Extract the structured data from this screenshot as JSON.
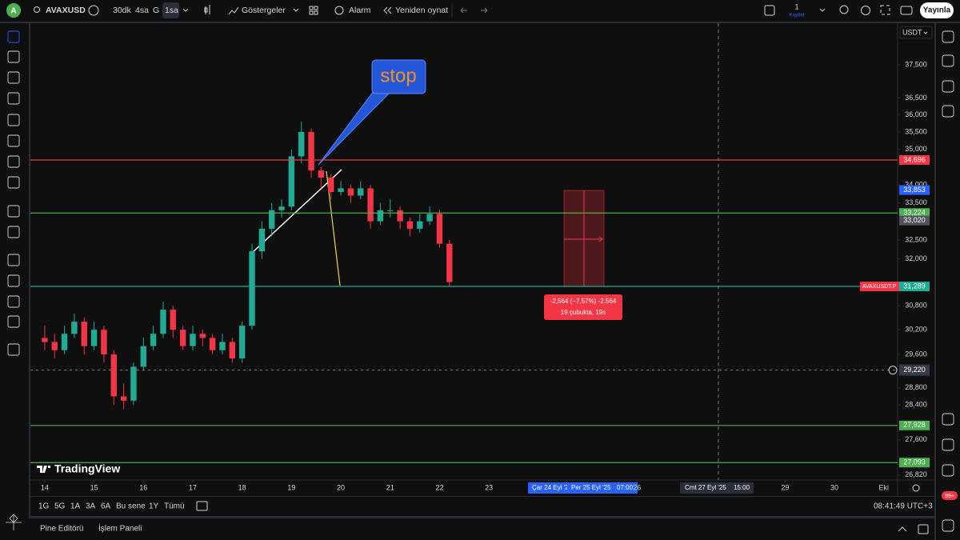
{
  "top_bar": {
    "avatar": "A",
    "symbol": "AVAXUSD",
    "intervals": [
      "30dk",
      "4sa",
      "G",
      "1sa"
    ],
    "indicators": "Göstergeler",
    "alarm": "Alarm",
    "replay": "Yeniden oynat",
    "save_count": "1",
    "save": "Kaydet",
    "publish": "Yayınla"
  },
  "chart_data": {
    "type": "candlestick",
    "currency": "USDT",
    "log_scale": true,
    "grid": false,
    "up_color": "#22ab94",
    "down_color": "#f23645",
    "x": [
      14.0,
      14.2,
      14.4,
      14.6,
      14.8,
      15.0,
      15.2,
      15.4,
      15.6,
      15.8,
      16.0,
      16.2,
      16.4,
      16.6,
      16.8,
      17.0,
      17.2,
      17.4,
      17.6,
      17.8,
      18.0,
      18.2,
      18.4,
      18.6,
      18.8,
      19.0,
      19.2,
      19.4,
      19.6,
      19.8,
      20.0,
      20.2,
      20.4,
      20.6,
      20.8,
      21.0,
      21.2,
      21.4,
      21.6,
      21.8,
      22.0,
      22.2
    ],
    "open": [
      30000,
      29900,
      29700,
      30100,
      30400,
      29800,
      30200,
      29600,
      28600,
      28500,
      29300,
      29800,
      30100,
      30700,
      30200,
      29800,
      30100,
      30000,
      29700,
      29900,
      29500,
      30300,
      32200,
      32800,
      33300,
      33400,
      34800,
      35500,
      34400,
      34200,
      33800,
      33900,
      33700,
      33900,
      33000,
      33300,
      33300,
      33000,
      32800,
      33000,
      33200,
      32400
    ],
    "high": [
      30300,
      30100,
      30300,
      30600,
      30500,
      30400,
      30300,
      29700,
      28900,
      29400,
      30000,
      30300,
      30900,
      30800,
      30300,
      30300,
      30200,
      30100,
      30100,
      30000,
      30400,
      32400,
      33000,
      33500,
      33600,
      35000,
      35800,
      35600,
      34500,
      34300,
      34100,
      34000,
      34100,
      34000,
      33500,
      33600,
      33400,
      33100,
      33200,
      33400,
      33300,
      32500
    ],
    "low": [
      29700,
      29500,
      29600,
      30000,
      29600,
      29700,
      29400,
      28400,
      28300,
      28400,
      29200,
      29700,
      30000,
      30000,
      29700,
      29700,
      29800,
      29600,
      29600,
      29400,
      29400,
      30200,
      32000,
      32600,
      33100,
      33300,
      34600,
      34200,
      33900,
      33600,
      33700,
      33500,
      33600,
      32800,
      32900,
      33100,
      32800,
      32600,
      32700,
      32900,
      32300,
      31300
    ],
    "close": [
      29900,
      29700,
      30100,
      30400,
      29800,
      30200,
      29600,
      28600,
      28500,
      29300,
      29800,
      30100,
      30700,
      30200,
      29800,
      30100,
      30000,
      29700,
      29900,
      29500,
      30300,
      32200,
      32800,
      33300,
      33400,
      34800,
      35500,
      34400,
      34200,
      33800,
      33900,
      33700,
      33900,
      33000,
      33300,
      33300,
      33000,
      32800,
      33000,
      33200,
      32400,
      31400
    ],
    "xlim": [
      13.71,
      31.28
    ],
    "xticks": [
      14,
      15,
      16,
      17,
      18,
      19,
      20,
      21,
      22,
      23,
      26,
      29,
      30,
      {
        "value": 31,
        "label": "Eki"
      }
    ],
    "ylim": [
      26710,
      38800
    ],
    "yticks": [
      {
        "value": 37500,
        "label": "37,500"
      },
      {
        "value": 36500,
        "label": "36,500"
      },
      {
        "value": 36000,
        "label": "36,000"
      },
      {
        "value": 35500,
        "label": "35,500"
      },
      {
        "value": 35000,
        "label": "35,000"
      },
      {
        "value": 34000,
        "label": "34,000"
      },
      {
        "value": 33500,
        "label": "33,500"
      },
      {
        "value": 32500,
        "label": "32,500"
      },
      {
        "value": 32000,
        "label": "32,000"
      },
      {
        "value": 30800,
        "label": "30,800"
      },
      {
        "value": 30200,
        "label": "30,200"
      },
      {
        "value": 29600,
        "label": "29,600"
      },
      {
        "value": 28800,
        "label": "28,800"
      },
      {
        "value": 28400,
        "label": "28,400"
      },
      {
        "value": 27600,
        "label": "27,600"
      },
      {
        "value": 26820,
        "label": "26,820"
      }
    ],
    "levels": [
      {
        "value": 34696,
        "label": "34,696",
        "color": "#f23645",
        "line": true
      },
      {
        "value": 33853,
        "label": "33,853",
        "color": "#2962ff",
        "line": false
      },
      {
        "value": 33224,
        "label": "33,224",
        "color": "#4caf50",
        "line": true
      },
      {
        "value": 33020,
        "label": "33,020",
        "color": "#50535e",
        "line": false
      },
      {
        "value": 31289,
        "label": "31,289",
        "color": "#22ab94",
        "line": true
      },
      {
        "value": 27928,
        "label": "27,928",
        "color": "#4caf50",
        "line": true
      },
      {
        "value": 27093,
        "label": "27,093",
        "color": "#4caf50",
        "line": true
      }
    ],
    "symbol_label": "AVAXUSDT.P",
    "crosshair": {
      "value": 29220,
      "label": "29,220"
    },
    "time_badges": [
      "Çar 24 Eyl '25",
      "Per 25 Eyl '25",
      "07:00",
      "Cmt 27 Eyl '25",
      "15:00"
    ],
    "annotation": "stop",
    "measure": {
      "line1": "-2,564 (−7,57%) -2.564",
      "line2": "19 çubukta, 19s"
    },
    "logo": "TradingView"
  },
  "bottom_bar": {
    "ranges": [
      "1G",
      "5G",
      "1A",
      "3A",
      "6A",
      "Bu sene",
      "1Y",
      "Tümü"
    ],
    "clock": "08:41:49 UTC+3",
    "panels": [
      "Pine Editörü",
      "İşlem Paneli"
    ],
    "notif_badge": "99+"
  }
}
